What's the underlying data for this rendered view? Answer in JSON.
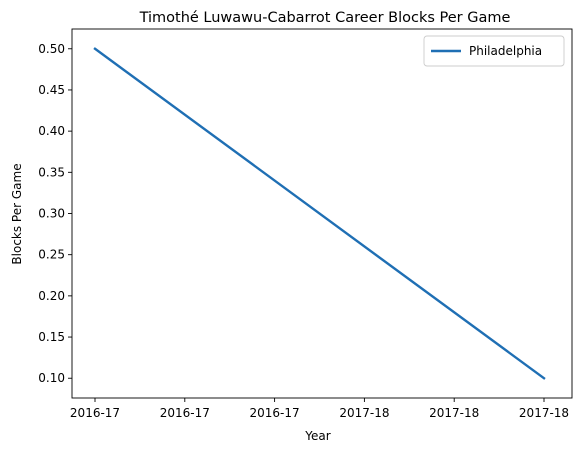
{
  "chart_data": {
    "type": "line",
    "title": "Timothé Luwawu-Cabarrot Career Blocks Per Game",
    "xlabel": "Year",
    "ylabel": "Blocks Per Game",
    "x_tick_labels": [
      "2016-17",
      "2016-17",
      "2016-17",
      "2017-18",
      "2017-18",
      "2017-18"
    ],
    "x_start": "2016-17",
    "x_end": "2017-18",
    "y_ticks": [
      "0.10",
      "0.15",
      "0.20",
      "0.25",
      "0.30",
      "0.35",
      "0.40",
      "0.45",
      "0.50"
    ],
    "ylim": [
      0.076,
      0.524
    ],
    "series": [
      {
        "name": "Philadelphia",
        "color": "#1f6fb4",
        "points": [
          {
            "x": "2016-17",
            "y": 0.5
          },
          {
            "x": "2017-18",
            "y": 0.1
          }
        ]
      }
    ],
    "legend_position": "top-right",
    "grid": false
  }
}
